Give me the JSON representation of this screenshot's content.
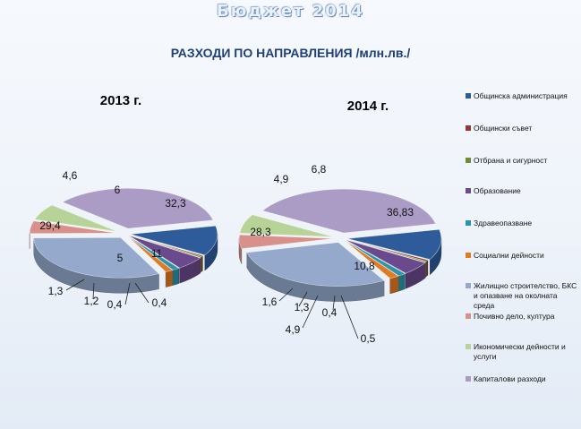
{
  "page": {
    "title": "Бюджет 2014",
    "subtitle": "РАЗХОДИ ПО НАПРАВЛЕНИЯ /млн.лв./"
  },
  "colors": [
    "#2e5b9a",
    "#8c3a3a",
    "#6f8d2f",
    "#6a4a8c",
    "#2e93ab",
    "#e07b25",
    "#95a9cc",
    "#d8918a",
    "#b8d398",
    "#ab9cc6"
  ],
  "chart_data": [
    {
      "type": "pie",
      "title": "2013 г.",
      "categories": [
        "Общинска администрация",
        "Общински съвет",
        "Отбрана и сигурност",
        "Образование",
        "Здравеопазване",
        "Социални дейности",
        "Жилищно строителство, БКС и опазване на околната среда",
        "Почивно дело, култура",
        "Икономически дейности и услуги",
        "Капиталови разходи"
      ],
      "values": [
        11,
        0.4,
        0.4,
        5,
        1.2,
        1.3,
        29.4,
        4.6,
        6,
        32.3
      ],
      "labels": [
        "11",
        "0,4",
        "0,4",
        "5",
        "1,2",
        "1,3",
        "29,4",
        "4,6",
        "6",
        "32,3"
      ]
    },
    {
      "type": "pie",
      "title": "2014 г.",
      "categories": [
        "Общинска администрация",
        "Общински съвет",
        "Отбрана и сигурност",
        "Образование",
        "Здравеопазване",
        "Социални дейности",
        "Жилищно строителство, БКС и опазване на околната среда",
        "Почивно дело, култура",
        "Икономически дейности и услуги",
        "Капиталови разходи"
      ],
      "values": [
        10.8,
        0.5,
        0.4,
        4.9,
        1.3,
        1.6,
        28.3,
        4.9,
        6.8,
        36.83
      ],
      "labels": [
        "10,8",
        "0,5",
        "0,4",
        "4,9",
        "1,3",
        "1,6",
        "28,3",
        "4,9",
        "6,8",
        "36,83"
      ]
    }
  ],
  "legend": [
    "Общинска администрация",
    "Общински съвет",
    "Отбрана и сигурност",
    "Образование",
    "Здравеопазване",
    "Социални дейности",
    "Жилищно строителство, БКС и опазване на околната среда",
    "Почивно дело, култура",
    "Икономически дейности и услуги",
    "Капиталови разходи"
  ]
}
